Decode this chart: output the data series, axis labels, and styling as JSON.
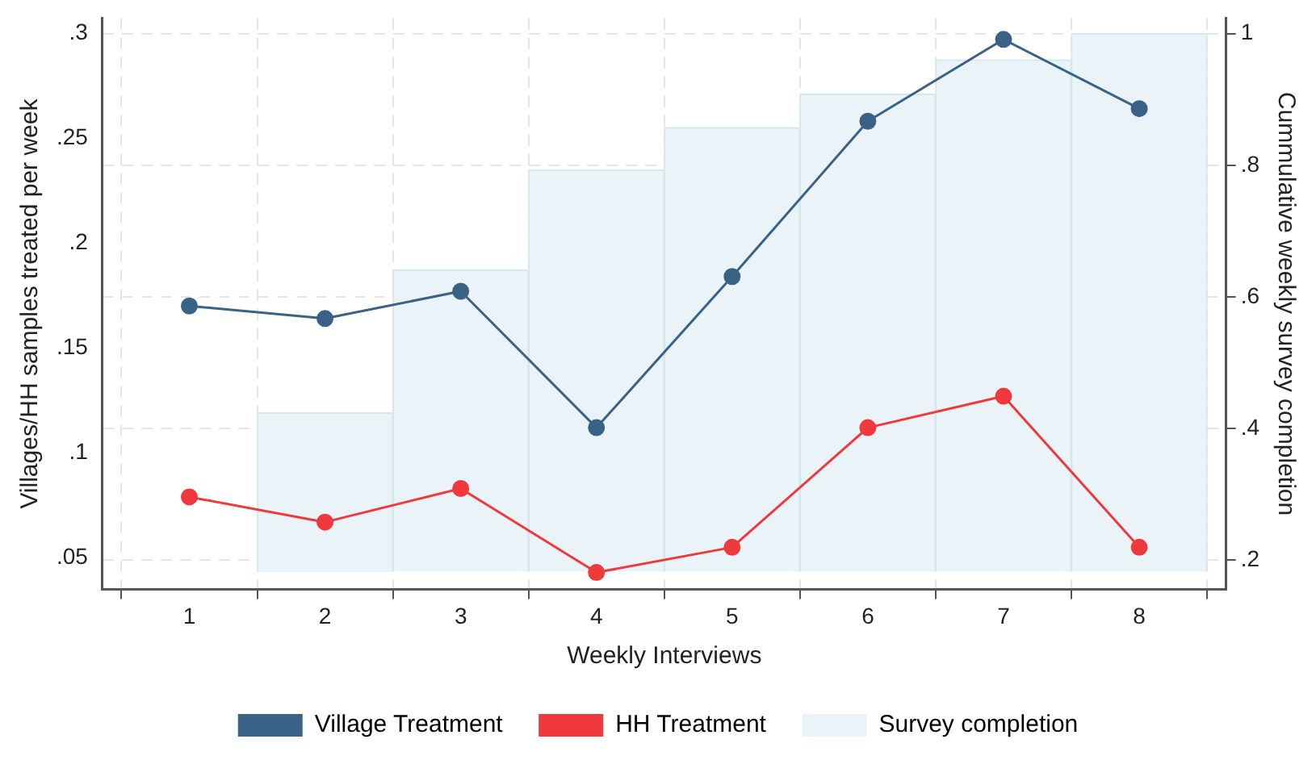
{
  "chart_data": {
    "type": "line",
    "xlabel": "Weekly Interviews",
    "ylabel": "Villages/HH samples treated per week",
    "y2label": "Cummulative weekly survey completion",
    "x": [
      1,
      2,
      3,
      4,
      5,
      6,
      7,
      8
    ],
    "xlim": [
      0.36,
      8.64
    ],
    "xticks": [
      1,
      2,
      3,
      4,
      5,
      6,
      7,
      8
    ],
    "ylim": [
      0.035,
      0.307
    ],
    "yticks": [
      {
        "value": 0.05,
        "label": ".05"
      },
      {
        "value": 0.1,
        "label": ".1"
      },
      {
        "value": 0.15,
        "label": ".15"
      },
      {
        "value": 0.2,
        "label": ".2"
      },
      {
        "value": 0.25,
        "label": ".25"
      },
      {
        "value": 0.3,
        "label": ".3"
      }
    ],
    "y2lim": [
      0.156,
      1.023
    ],
    "y2ticks": [
      {
        "value": 0.2,
        "label": ".2"
      },
      {
        "value": 0.4,
        "label": ".4"
      },
      {
        "value": 0.6,
        "label": ".6"
      },
      {
        "value": 0.8,
        "label": ".8"
      },
      1
    ],
    "series": [
      {
        "name": "Village Treatment",
        "color": "#3a6186",
        "values": [
          0.17,
          0.164,
          0.177,
          0.112,
          0.184,
          0.258,
          0.297,
          0.264
        ]
      },
      {
        "name": "HH Treatment",
        "color": "#f0393c",
        "values": [
          0.079,
          0.067,
          0.083,
          0.043,
          0.055,
          0.112,
          0.127,
          0.055
        ]
      },
      {
        "name": "Survey completion",
        "type": "bar",
        "axis": "y2",
        "color": "#eaf4f8",
        "base": [
          null,
          0.183,
          0.183,
          0.183,
          0.183,
          0.183,
          0.183,
          0.183
        ],
        "values": [
          null,
          0.241,
          0.458,
          0.61,
          0.674,
          0.725,
          0.777,
          0.817
        ]
      }
    ],
    "grid": true,
    "legend": "bottom",
    "marker": "circle",
    "line_style": "solid"
  }
}
